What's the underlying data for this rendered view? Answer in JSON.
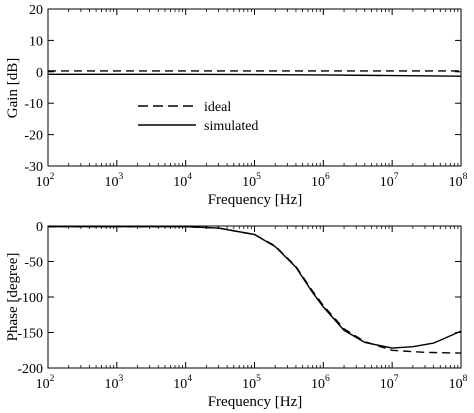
{
  "chart_data": [
    {
      "type": "line",
      "xlabel": "Frequency [Hz]",
      "ylabel": "Gain [dB]",
      "xscale": "log",
      "xlim": [
        100,
        100000000
      ],
      "ylim": [
        -30,
        20
      ],
      "xticks": [
        {
          "base": "10",
          "exp": "2"
        },
        {
          "base": "10",
          "exp": "3"
        },
        {
          "base": "10",
          "exp": "4"
        },
        {
          "base": "10",
          "exp": "5"
        },
        {
          "base": "10",
          "exp": "6"
        },
        {
          "base": "10",
          "exp": "7"
        },
        {
          "base": "10",
          "exp": "8"
        }
      ],
      "yticks": [
        "20",
        "10",
        "0",
        "-10",
        "-20",
        "-30"
      ],
      "legend_position": "center-left",
      "series": [
        {
          "name": "ideal",
          "style": "dashed",
          "x": [
            100,
            1000,
            10000,
            100000,
            1000000,
            10000000,
            100000000
          ],
          "y": [
            0.3,
            0.3,
            0.3,
            0.3,
            0.3,
            0.3,
            0.3
          ]
        },
        {
          "name": "simulated",
          "style": "solid",
          "x": [
            100,
            1000,
            10000,
            100000,
            1000000,
            10000000,
            100000000
          ],
          "y": [
            -0.8,
            -0.8,
            -0.8,
            -0.9,
            -1.0,
            -1.2,
            -1.4
          ]
        }
      ]
    },
    {
      "type": "line",
      "xlabel": "Frequency [Hz]",
      "ylabel": "Phase [degree]",
      "xscale": "log",
      "xlim": [
        100,
        100000000
      ],
      "ylim": [
        -200,
        0
      ],
      "xticks": [
        {
          "base": "10",
          "exp": "2"
        },
        {
          "base": "10",
          "exp": "3"
        },
        {
          "base": "10",
          "exp": "4"
        },
        {
          "base": "10",
          "exp": "5"
        },
        {
          "base": "10",
          "exp": "6"
        },
        {
          "base": "10",
          "exp": "7"
        },
        {
          "base": "10",
          "exp": "8"
        }
      ],
      "yticks": [
        "0",
        "-50",
        "-100",
        "-150",
        "-200"
      ],
      "series": [
        {
          "name": "ideal",
          "style": "dashed",
          "x": [
            100,
            1000,
            10000,
            30000,
            100000,
            200000,
            400000,
            700000,
            1000000,
            2000000,
            4000000,
            10000000,
            30000000,
            100000000
          ],
          "y": [
            -1,
            -1,
            -1,
            -3,
            -12,
            -28,
            -57,
            -92,
            -112,
            -145,
            -163,
            -175,
            -178,
            -179
          ]
        },
        {
          "name": "simulated",
          "style": "solid",
          "x": [
            100,
            1000,
            10000,
            30000,
            100000,
            200000,
            400000,
            700000,
            1000000,
            2000000,
            4000000,
            10000000,
            20000000,
            40000000,
            100000000
          ],
          "y": [
            -1,
            -1,
            -1,
            -3,
            -12,
            -29,
            -58,
            -94,
            -114,
            -147,
            -164,
            -172,
            -170,
            -165,
            -148
          ]
        }
      ]
    }
  ]
}
